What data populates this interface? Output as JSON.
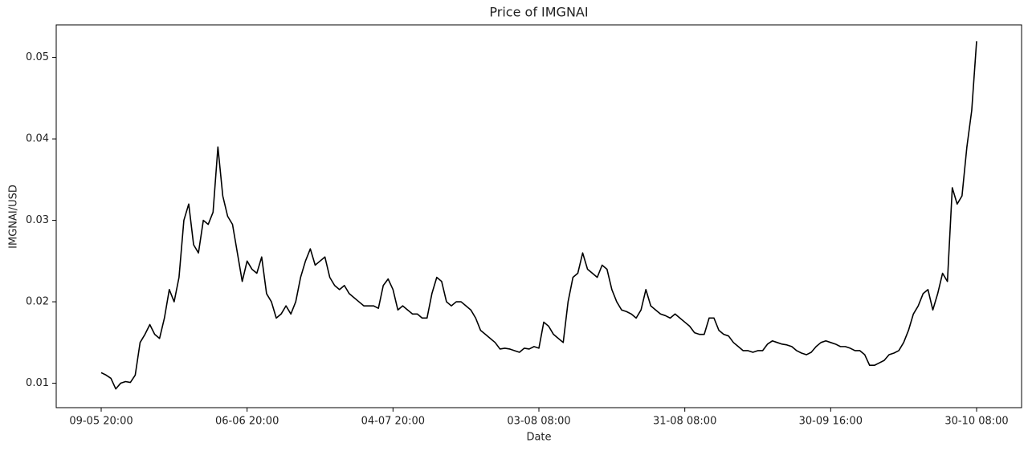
{
  "chart_data": {
    "type": "line",
    "title": "Price of IMGNAI",
    "x_label": "Date",
    "y_label": "IMGNAI/USD",
    "categories": [
      "09-05 20:00",
      null,
      null,
      null,
      null,
      null,
      null,
      null,
      null,
      null,
      null,
      null,
      null,
      null,
      null,
      null,
      null,
      null,
      null,
      null,
      null,
      null,
      null,
      null,
      null,
      null,
      null,
      null,
      null,
      null,
      "06-06 20:00",
      null,
      null,
      null,
      null,
      null,
      null,
      null,
      null,
      null,
      null,
      null,
      null,
      null,
      null,
      null,
      null,
      null,
      null,
      null,
      null,
      null,
      null,
      null,
      null,
      null,
      null,
      null,
      null,
      null,
      "04-07 20:00",
      null,
      null,
      null,
      null,
      null,
      null,
      null,
      null,
      null,
      null,
      null,
      null,
      null,
      null,
      null,
      null,
      null,
      null,
      null,
      null,
      null,
      null,
      null,
      null,
      null,
      null,
      null,
      null,
      null,
      "03-08 08:00",
      null,
      null,
      null,
      null,
      null,
      null,
      null,
      null,
      null,
      null,
      null,
      null,
      null,
      null,
      null,
      null,
      null,
      null,
      null,
      null,
      null,
      null,
      null,
      null,
      null,
      null,
      null,
      null,
      null,
      "31-08 08:00",
      null,
      null,
      null,
      null,
      null,
      null,
      null,
      null,
      null,
      null,
      null,
      null,
      null,
      null,
      null,
      null,
      null,
      null,
      null,
      null,
      null,
      null,
      null,
      null,
      null,
      null,
      null,
      null,
      null,
      "30-09 16:00",
      null,
      null,
      null,
      null,
      null,
      null,
      null,
      null,
      null,
      null,
      null,
      null,
      null,
      null,
      null,
      null,
      null,
      null,
      null,
      null,
      null,
      null,
      null,
      null,
      null,
      null,
      null,
      null,
      null,
      "30-10 08:00"
    ],
    "series": [
      {
        "name": "IMGNAI/USD",
        "color": "#000000",
        "values": [
          0.0113,
          0.011,
          0.0106,
          0.0093,
          0.01,
          0.0102,
          0.0101,
          0.011,
          0.015,
          0.016,
          0.0172,
          0.016,
          0.0155,
          0.018,
          0.0215,
          0.02,
          0.023,
          0.03,
          0.032,
          0.027,
          0.026,
          0.03,
          0.0295,
          0.031,
          0.039,
          0.033,
          0.0305,
          0.0295,
          0.026,
          0.0225,
          0.025,
          0.024,
          0.0235,
          0.0255,
          0.021,
          0.02,
          0.018,
          0.0185,
          0.0195,
          0.0185,
          0.02,
          0.023,
          0.025,
          0.0265,
          0.0245,
          0.025,
          0.0255,
          0.023,
          0.022,
          0.0215,
          0.022,
          0.021,
          0.0205,
          0.02,
          0.0195,
          0.0195,
          0.0195,
          0.0192,
          0.022,
          0.0228,
          0.0215,
          0.019,
          0.0195,
          0.019,
          0.0185,
          0.0185,
          0.018,
          0.018,
          0.021,
          0.023,
          0.0225,
          0.02,
          0.0195,
          0.02,
          0.02,
          0.0195,
          0.019,
          0.018,
          0.0165,
          0.016,
          0.0155,
          0.015,
          0.0142,
          0.0143,
          0.0142,
          0.014,
          0.0138,
          0.0143,
          0.0142,
          0.0145,
          0.0143,
          0.0175,
          0.017,
          0.016,
          0.0155,
          0.015,
          0.02,
          0.023,
          0.0235,
          0.026,
          0.024,
          0.0235,
          0.023,
          0.0245,
          0.024,
          0.0215,
          0.02,
          0.019,
          0.0188,
          0.0185,
          0.018,
          0.019,
          0.0215,
          0.0195,
          0.019,
          0.0185,
          0.0183,
          0.018,
          0.0185,
          0.018,
          0.0175,
          0.017,
          0.0162,
          0.016,
          0.016,
          0.018,
          0.018,
          0.0165,
          0.016,
          0.0158,
          0.015,
          0.0145,
          0.014,
          0.014,
          0.0138,
          0.014,
          0.014,
          0.0148,
          0.0152,
          0.015,
          0.0148,
          0.0147,
          0.0145,
          0.014,
          0.0137,
          0.0135,
          0.0138,
          0.0145,
          0.015,
          0.0152,
          0.015,
          0.0148,
          0.0145,
          0.0145,
          0.0143,
          0.014,
          0.014,
          0.0135,
          0.0122,
          0.0122,
          0.0125,
          0.0128,
          0.0135,
          0.0137,
          0.014,
          0.015,
          0.0165,
          0.0185,
          0.0195,
          0.021,
          0.0215,
          0.019,
          0.021,
          0.0235,
          0.0225,
          0.034,
          0.032,
          0.033,
          0.039,
          0.0435,
          0.052
        ]
      }
    ],
    "ylim": [
      0.007,
      0.054
    ],
    "yticks": [
      0.01,
      0.02,
      0.03,
      0.04,
      0.05
    ],
    "grid": false
  }
}
